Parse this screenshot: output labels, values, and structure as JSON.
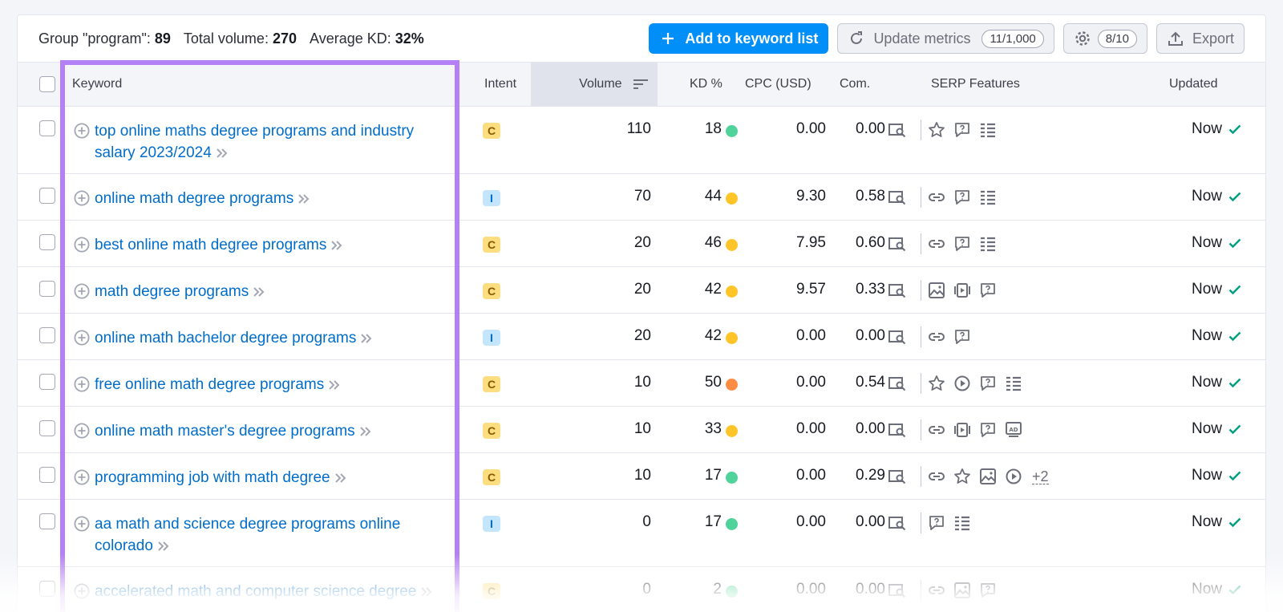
{
  "summary": {
    "group_label": "Group \"program\":",
    "group_count": "89",
    "volume_label": "Total volume:",
    "volume_value": "270",
    "kd_label": "Average KD:",
    "kd_value": "32%"
  },
  "toolbar": {
    "add_label": "Add to keyword list",
    "update_label": "Update metrics",
    "update_count": "11/1,000",
    "settings_count": "8/10",
    "export_label": "Export"
  },
  "columns": {
    "keyword": "Keyword",
    "intent": "Intent",
    "volume": "Volume",
    "kd": "KD %",
    "cpc": "CPC (USD)",
    "com": "Com.",
    "serp": "SERP Features",
    "updated": "Updated"
  },
  "colors": {
    "accent": "#008ff8",
    "link": "#006dca",
    "highlight": "#b57ff5",
    "kd_green": "#4fd39a",
    "kd_yellow": "#ffc428",
    "kd_orange": "#ff8c43",
    "check": "#009f81"
  },
  "rows": [
    {
      "keyword": "top online maths degree programs and industry salary 2023/2024",
      "intent": "C",
      "volume": "110",
      "kd": "18",
      "kd_color": "#4fd39a",
      "cpc": "0.00",
      "com": "0.00",
      "serp": [
        "star-icon",
        "question-icon",
        "list-icon"
      ],
      "more": "",
      "updated": "Now"
    },
    {
      "keyword": "online math degree programs",
      "intent": "I",
      "volume": "70",
      "kd": "44",
      "kd_color": "#ffc428",
      "cpc": "9.30",
      "com": "0.58",
      "serp": [
        "link-icon",
        "question-icon",
        "list-icon"
      ],
      "more": "",
      "updated": "Now"
    },
    {
      "keyword": "best online math degree programs",
      "intent": "C",
      "volume": "20",
      "kd": "46",
      "kd_color": "#ffc428",
      "cpc": "7.95",
      "com": "0.60",
      "serp": [
        "link-icon",
        "question-icon",
        "list-icon"
      ],
      "more": "",
      "updated": "Now"
    },
    {
      "keyword": "math degree programs",
      "intent": "C",
      "volume": "20",
      "kd": "42",
      "kd_color": "#ffc428",
      "cpc": "9.57",
      "com": "0.33",
      "serp": [
        "image-icon",
        "video-carousel-icon",
        "question-icon"
      ],
      "more": "",
      "updated": "Now"
    },
    {
      "keyword": "online math bachelor degree programs",
      "intent": "I",
      "volume": "20",
      "kd": "42",
      "kd_color": "#ffc428",
      "cpc": "0.00",
      "com": "0.00",
      "serp": [
        "link-icon",
        "question-icon"
      ],
      "more": "",
      "updated": "Now"
    },
    {
      "keyword": "free online math degree programs",
      "intent": "C",
      "volume": "10",
      "kd": "50",
      "kd_color": "#ff8c43",
      "cpc": "0.00",
      "com": "0.54",
      "serp": [
        "star-icon",
        "play-icon",
        "question-icon",
        "list-icon"
      ],
      "more": "",
      "updated": "Now"
    },
    {
      "keyword": "online math master's degree programs",
      "intent": "C",
      "volume": "10",
      "kd": "33",
      "kd_color": "#ffc428",
      "cpc": "0.00",
      "com": "0.00",
      "serp": [
        "link-icon",
        "video-carousel-icon",
        "question-icon",
        "ad-icon"
      ],
      "more": "",
      "updated": "Now"
    },
    {
      "keyword": "programming job with math degree",
      "intent": "C",
      "volume": "10",
      "kd": "17",
      "kd_color": "#4fd39a",
      "cpc": "0.00",
      "com": "0.29",
      "serp": [
        "link-icon",
        "star-icon",
        "image-icon",
        "play-icon"
      ],
      "more": "+2",
      "updated": "Now"
    },
    {
      "keyword": "aa math and science degree programs online colorado",
      "intent": "I",
      "volume": "0",
      "kd": "17",
      "kd_color": "#4fd39a",
      "cpc": "0.00",
      "com": "0.00",
      "serp": [
        "question-icon",
        "list-icon"
      ],
      "more": "",
      "updated": "Now"
    },
    {
      "keyword": "accelerated math and computer science degree",
      "intent": "C",
      "volume": "0",
      "kd": "2",
      "kd_color": "#4fd39a",
      "cpc": "0.00",
      "com": "0.00",
      "serp": [
        "link-icon",
        "image-icon",
        "question-icon"
      ],
      "more": "",
      "updated": "Now"
    }
  ]
}
